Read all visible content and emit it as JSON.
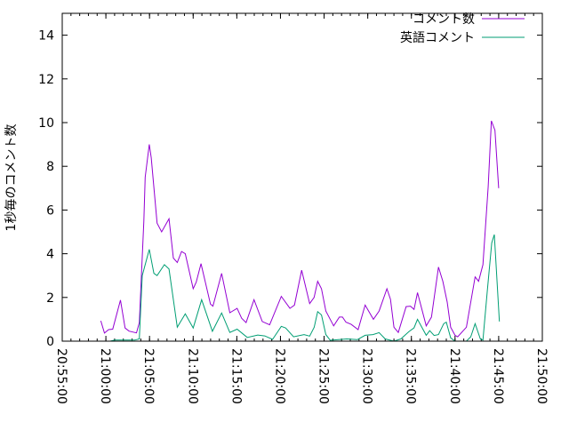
{
  "chart_data": {
    "type": "line",
    "title": "",
    "xlabel": "",
    "ylabel": "1秒毎のコメント数",
    "xlim": [
      "20:55:00",
      "21:50:00"
    ],
    "ylim": [
      0,
      15
    ],
    "x_ticks": [
      "20:55:00",
      "21:00:00",
      "21:05:00",
      "21:10:00",
      "21:15:00",
      "21:20:00",
      "21:25:00",
      "21:30:00",
      "21:35:00",
      "21:40:00",
      "21:45:00",
      "21:50:00"
    ],
    "y_ticks": [
      0,
      2,
      4,
      6,
      8,
      10,
      12,
      14
    ],
    "grid": false,
    "legend_placement": "top-right",
    "series": [
      {
        "name": "コメント数",
        "color": "#9400d3",
        "points": [
          [
            "20:59:25",
            0.93
          ],
          [
            "20:59:50",
            0.37
          ],
          [
            "21:00:19",
            0.53
          ],
          [
            "21:00:47",
            0.55
          ],
          [
            "21:01:40",
            1.88
          ],
          [
            "21:02:12",
            0.6
          ],
          [
            "21:02:39",
            0.46
          ],
          [
            "21:03:30",
            0.38
          ],
          [
            "21:03:50",
            0.85
          ],
          [
            "21:04:21",
            5.5
          ],
          [
            "21:04:30",
            7.5
          ],
          [
            "21:04:58",
            9.0
          ],
          [
            "21:05:12",
            8.4
          ],
          [
            "21:05:52",
            5.4
          ],
          [
            "21:06:23",
            5.0
          ],
          [
            "21:07:14",
            5.6
          ],
          [
            "21:07:44",
            3.8
          ],
          [
            "21:08:11",
            3.6
          ],
          [
            "21:08:40",
            4.1
          ],
          [
            "21:09:06",
            4.0
          ],
          [
            "21:10:00",
            2.4
          ],
          [
            "21:10:21",
            2.7
          ],
          [
            "21:10:54",
            3.55
          ],
          [
            "21:11:59",
            1.7
          ],
          [
            "21:12:16",
            1.6
          ],
          [
            "21:13:16",
            3.1
          ],
          [
            "21:14:12",
            1.3
          ],
          [
            "21:15:02",
            1.5
          ],
          [
            "21:15:33",
            1.05
          ],
          [
            "21:16:04",
            0.85
          ],
          [
            "21:16:58",
            1.9
          ],
          [
            "21:17:55",
            0.9
          ],
          [
            "21:18:46",
            0.75
          ],
          [
            "21:20:06",
            2.05
          ],
          [
            "21:21:05",
            1.5
          ],
          [
            "21:21:36",
            1.65
          ],
          [
            "21:22:26",
            3.25
          ],
          [
            "21:23:21",
            1.72
          ],
          [
            "21:23:51",
            2.0
          ],
          [
            "21:24:16",
            2.74
          ],
          [
            "21:24:42",
            2.4
          ],
          [
            "21:25:12",
            1.38
          ],
          [
            "21:26:06",
            0.7
          ],
          [
            "21:26:45",
            1.1
          ],
          [
            "21:27:06",
            1.1
          ],
          [
            "21:27:30",
            0.87
          ],
          [
            "21:28:06",
            0.77
          ],
          [
            "21:28:54",
            0.53
          ],
          [
            "21:29:42",
            1.65
          ],
          [
            "21:30:39",
            1.0
          ],
          [
            "21:31:18",
            1.38
          ],
          [
            "21:32:12",
            2.4
          ],
          [
            "21:32:36",
            1.92
          ],
          [
            "21:33:00",
            0.64
          ],
          [
            "21:33:30",
            0.4
          ],
          [
            "21:34:24",
            1.58
          ],
          [
            "21:34:54",
            1.6
          ],
          [
            "21:35:18",
            1.45
          ],
          [
            "21:35:42",
            2.22
          ],
          [
            "21:36:42",
            0.7
          ],
          [
            "21:37:18",
            1.1
          ],
          [
            "21:38:06",
            3.39
          ],
          [
            "21:38:36",
            2.74
          ],
          [
            "21:39:06",
            1.79
          ],
          [
            "21:39:30",
            0.64
          ],
          [
            "21:40:00",
            0.27
          ],
          [
            "21:40:18",
            0.2
          ],
          [
            "21:41:18",
            0.64
          ],
          [
            "21:42:18",
            2.94
          ],
          [
            "21:42:42",
            2.74
          ],
          [
            "21:43:12",
            3.5
          ],
          [
            "21:43:48",
            7.07
          ],
          [
            "21:44:10",
            10.08
          ],
          [
            "21:44:34",
            9.65
          ],
          [
            "21:45:00",
            7.0
          ]
        ]
      },
      {
        "name": "英語コメント",
        "color": "#009e73",
        "points": [
          [
            "21:00:30",
            0.0
          ],
          [
            "21:01:00",
            0.05
          ],
          [
            "21:03:18",
            0.05
          ],
          [
            "21:03:50",
            0.1
          ],
          [
            "21:04:10",
            3.0
          ],
          [
            "21:04:58",
            4.2
          ],
          [
            "21:05:30",
            3.1
          ],
          [
            "21:05:52",
            3.0
          ],
          [
            "21:06:42",
            3.5
          ],
          [
            "21:07:14",
            3.3
          ],
          [
            "21:08:11",
            0.64
          ],
          [
            "21:09:06",
            1.25
          ],
          [
            "21:10:00",
            0.6
          ],
          [
            "21:10:58",
            1.9
          ],
          [
            "21:12:12",
            0.45
          ],
          [
            "21:13:16",
            1.29
          ],
          [
            "21:14:12",
            0.4
          ],
          [
            "21:15:02",
            0.55
          ],
          [
            "21:16:12",
            0.17
          ],
          [
            "21:17:24",
            0.28
          ],
          [
            "21:18:12",
            0.24
          ],
          [
            "21:19:06",
            0.08
          ],
          [
            "21:20:06",
            0.68
          ],
          [
            "21:20:36",
            0.6
          ],
          [
            "21:21:30",
            0.2
          ],
          [
            "21:22:42",
            0.3
          ],
          [
            "21:23:21",
            0.23
          ],
          [
            "21:23:52",
            0.64
          ],
          [
            "21:24:16",
            1.35
          ],
          [
            "21:24:42",
            1.2
          ],
          [
            "21:25:12",
            0.3
          ],
          [
            "21:25:42",
            0.04
          ],
          [
            "21:27:36",
            0.1
          ],
          [
            "21:28:48",
            0.07
          ],
          [
            "21:29:42",
            0.27
          ],
          [
            "21:30:36",
            0.3
          ],
          [
            "21:31:18",
            0.39
          ],
          [
            "21:32:00",
            0.1
          ],
          [
            "21:33:00",
            0.0
          ],
          [
            "21:33:48",
            0.1
          ],
          [
            "21:34:42",
            0.43
          ],
          [
            "21:35:18",
            0.61
          ],
          [
            "21:35:42",
            1.0
          ],
          [
            "21:36:42",
            0.27
          ],
          [
            "21:37:06",
            0.48
          ],
          [
            "21:37:36",
            0.26
          ],
          [
            "21:38:06",
            0.3
          ],
          [
            "21:38:42",
            0.8
          ],
          [
            "21:39:00",
            0.87
          ],
          [
            "21:39:30",
            0.15
          ],
          [
            "21:40:00",
            0.0
          ],
          [
            "21:41:18",
            0.0
          ],
          [
            "21:41:48",
            0.2
          ],
          [
            "21:42:18",
            0.8
          ],
          [
            "21:42:54",
            0.1
          ],
          [
            "21:43:12",
            0.05
          ],
          [
            "21:43:42",
            2.3
          ],
          [
            "21:44:12",
            4.5
          ],
          [
            "21:44:30",
            4.88
          ],
          [
            "21:45:05",
            0.9
          ]
        ]
      }
    ]
  }
}
